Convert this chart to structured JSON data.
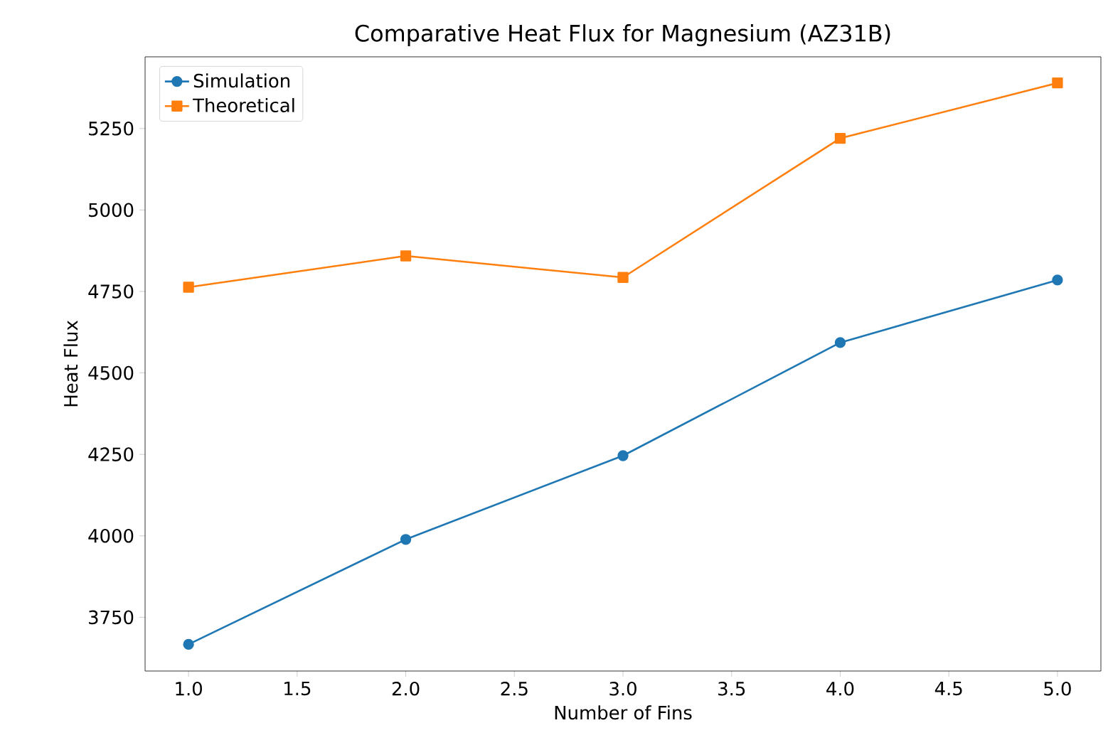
{
  "chart_data": {
    "type": "line",
    "title": "Comparative Heat Flux for Magnesium (AZ31B)",
    "xlabel": "Number of Fins",
    "ylabel": "Heat Flux",
    "x": [
      1,
      2,
      3,
      4,
      5
    ],
    "series": [
      {
        "name": "Simulation",
        "color": "#1f77b4",
        "marker": "circle",
        "values": [
          3667,
          3989,
          4246,
          4593,
          4785
        ]
      },
      {
        "name": "Theoretical",
        "color": "#ff7f0e",
        "marker": "square",
        "values": [
          4763,
          4859,
          4793,
          5220,
          5390
        ]
      }
    ],
    "xlim": [
      0.8,
      5.2
    ],
    "ylim": [
      3585,
      5470
    ],
    "xticks": [
      {
        "value": 1,
        "label": "1.0"
      },
      {
        "value": 1.5,
        "label": "1.5"
      },
      {
        "value": 2,
        "label": "2.0"
      },
      {
        "value": 2.5,
        "label": "2.5"
      },
      {
        "value": 3,
        "label": "3.0"
      },
      {
        "value": 3.5,
        "label": "3.5"
      },
      {
        "value": 4,
        "label": "4.0"
      },
      {
        "value": 4.5,
        "label": "4.5"
      },
      {
        "value": 5,
        "label": "5.0"
      }
    ],
    "yticks": [
      3750,
      4000,
      4250,
      4500,
      4750,
      5000,
      5250
    ],
    "legend": "top left",
    "grid": false,
    "line_style": "solid"
  }
}
